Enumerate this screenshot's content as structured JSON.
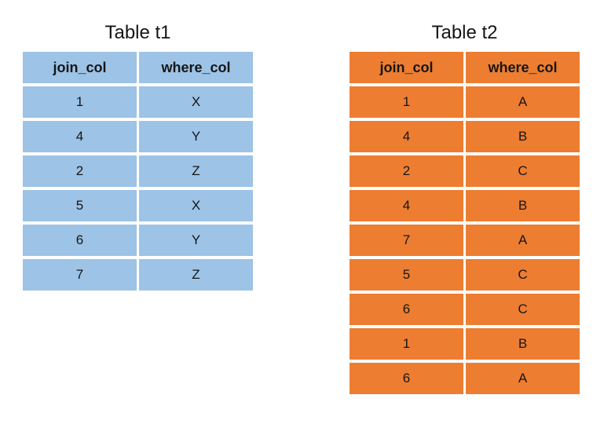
{
  "page": {
    "background_color": "#ffffff",
    "text_color": "#141414"
  },
  "tables": [
    {
      "title": "Table t1",
      "accent": "#9DC3E6",
      "headers": [
        "join_col",
        "where_col"
      ],
      "rows": [
        [
          "1",
          "X"
        ],
        [
          "4",
          "Y"
        ],
        [
          "2",
          "Z"
        ],
        [
          "5",
          "X"
        ],
        [
          "6",
          "Y"
        ],
        [
          "7",
          "Z"
        ]
      ]
    },
    {
      "title": "Table t2",
      "accent": "#ED7D31",
      "headers": [
        "join_col",
        "where_col"
      ],
      "rows": [
        [
          "1",
          "A"
        ],
        [
          "4",
          "B"
        ],
        [
          "2",
          "C"
        ],
        [
          "4",
          "B"
        ],
        [
          "7",
          "A"
        ],
        [
          "5",
          "C"
        ],
        [
          "6",
          "C"
        ],
        [
          "1",
          "B"
        ],
        [
          "6",
          "A"
        ]
      ]
    }
  ]
}
